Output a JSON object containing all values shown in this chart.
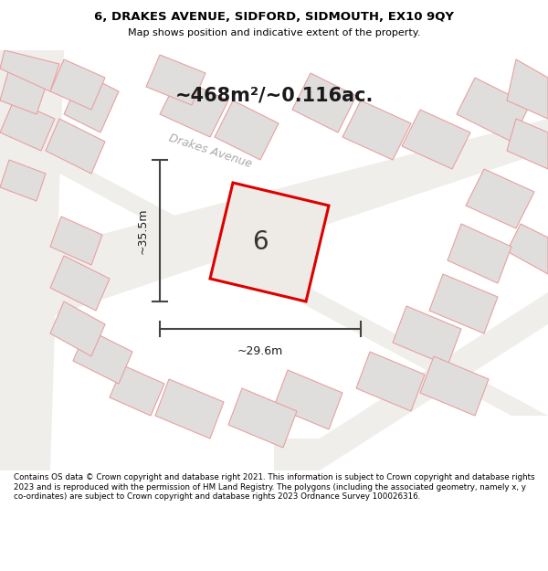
{
  "title_line1": "6, DRAKES AVENUE, SIDFORD, SIDMOUTH, EX10 9QY",
  "title_line2": "Map shows position and indicative extent of the property.",
  "footer_text": "Contains OS data © Crown copyright and database right 2021. This information is subject to Crown copyright and database rights 2023 and is reproduced with the permission of HM Land Registry. The polygons (including the associated geometry, namely x, y co-ordinates) are subject to Crown copyright and database rights 2023 Ordnance Survey 100026316.",
  "area_label": "~468m²/~0.116ac.",
  "street_label": "Drakes Avenue",
  "dim_width": "~29.6m",
  "dim_height": "~35.5m",
  "property_number": "6",
  "map_bg": "#f5f3f0",
  "plot_fill": "#eae8e4",
  "plot_outline": "#dd0000",
  "building_fill": "#e0dedd",
  "building_outline": "#e8a0a0",
  "road_color": "#f8f6f2"
}
